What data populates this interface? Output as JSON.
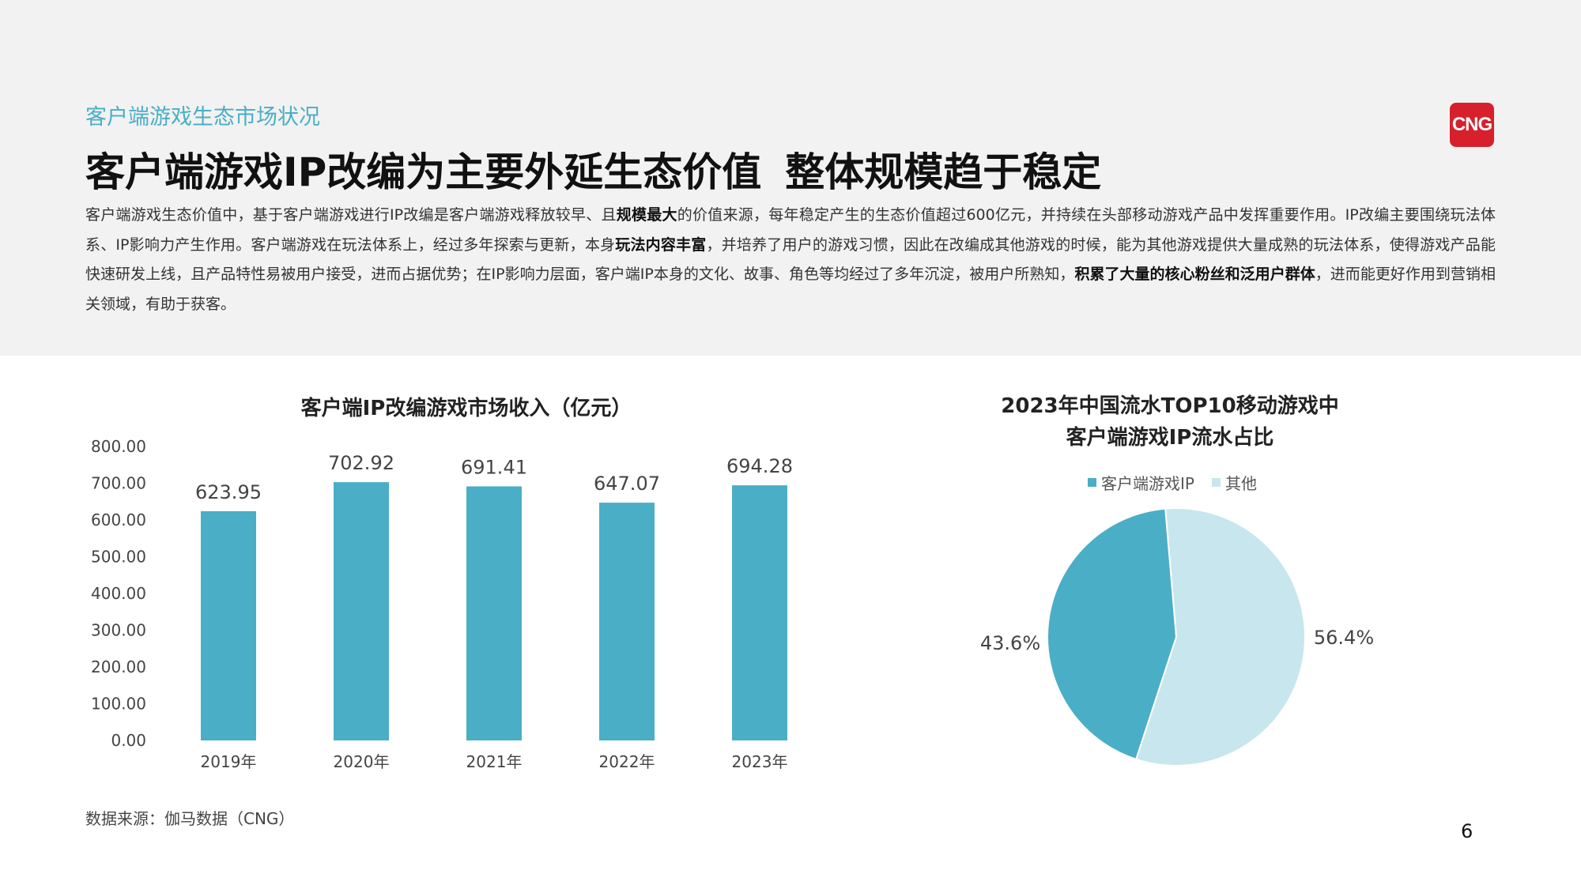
{
  "header": {
    "section_tag": "客户端游戏生态市场状况",
    "logo_text": "CNG",
    "title_part1": "客户端游戏IP改编为主要外延生态价值",
    "title_part2": "整体规模趋于稳定",
    "intro": [
      {
        "text": "客户端游戏生态价值中，基于客户端游戏进行IP改编是客户端游戏释放较早、且",
        "bold": false
      },
      {
        "text": "规模最大",
        "bold": true
      },
      {
        "text": "的价值来源，每年稳定产生的生态价值超过600亿元，并持续在头部移动游戏产品中发挥重要作用。IP改编主要围绕玩法体系、IP影响力产生作用。客户端游戏在玩法体系上，经过多年探索与更新，本身",
        "bold": false
      },
      {
        "text": "玩法内容丰富",
        "bold": true
      },
      {
        "text": "，并培养了用户的游戏习惯，因此在改编成其他游戏的时候，能为其他游戏提供大量成熟的玩法体系，使得游戏产品能快速研发上线，且产品特性易被用户接受，进而占据优势；在IP影响力层面，客户端IP本身的文化、故事、角色等均经过了多年沉淀，被用户所熟知，",
        "bold": false
      },
      {
        "text": "积累了大量的核心粉丝和泛用户群体",
        "bold": true
      },
      {
        "text": "，进而能更好作用到营销相关领域，有助于获客。",
        "bold": false
      }
    ]
  },
  "chart_data": [
    {
      "type": "bar",
      "title": "客户端IP改编游戏市场收入（亿元）",
      "categories": [
        "2019年",
        "2020年",
        "2021年",
        "2022年",
        "2023年"
      ],
      "values": [
        623.95,
        702.92,
        691.41,
        647.07,
        694.28
      ],
      "value_labels": [
        "623.95",
        "702.92",
        "691.41",
        "647.07",
        "694.28"
      ],
      "ylim": [
        0,
        800
      ],
      "yticks": [
        "0.00",
        "100.00",
        "200.00",
        "300.00",
        "400.00",
        "500.00",
        "600.00",
        "700.00",
        "800.00"
      ],
      "grid": false,
      "color": "#4aaec6"
    },
    {
      "type": "pie",
      "title_line1": "2023年中国流水TOP10移动游戏中",
      "title_line2": "客户端游戏IP流水占比",
      "legend_position": "top",
      "slices": [
        {
          "label": "客户端游戏IP",
          "value": 43.6,
          "value_label": "43.6%",
          "color": "#4aaec6"
        },
        {
          "label": "其他",
          "value": 56.4,
          "value_label": "56.4%",
          "color": "#c8e6ed"
        }
      ]
    }
  ],
  "footer": {
    "source": "数据来源：伽马数据（CNG）",
    "page_number": "6"
  }
}
